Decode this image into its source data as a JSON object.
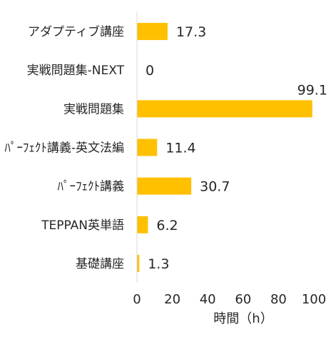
{
  "chart_data": {
    "type": "bar",
    "orientation": "horizontal",
    "categories": [
      "アダプティブ講座",
      "実戦問題集-NEXT",
      "実戦問題集",
      "ﾊﾟｰﾌｪｸﾄ講義-英文法編",
      "ﾊﾟｰﾌｪｸﾄ講義",
      "TEPPAN英単語",
      "基礎講座"
    ],
    "values": [
      17.3,
      0,
      99.1,
      11.4,
      30.7,
      6.2,
      1.3
    ],
    "data_labels": [
      "17.3",
      "0",
      "99.1",
      "11.4",
      "30.7",
      "6.2",
      "1.3"
    ],
    "xlabel": "時間（h）",
    "xlim": [
      0,
      100
    ],
    "xticks": [
      0,
      20,
      40,
      60,
      80,
      100
    ],
    "grid": false,
    "legend": "none",
    "bar_color": "#FFC000",
    "axis_color": "#D9D9D9",
    "text_color": "#262626"
  }
}
